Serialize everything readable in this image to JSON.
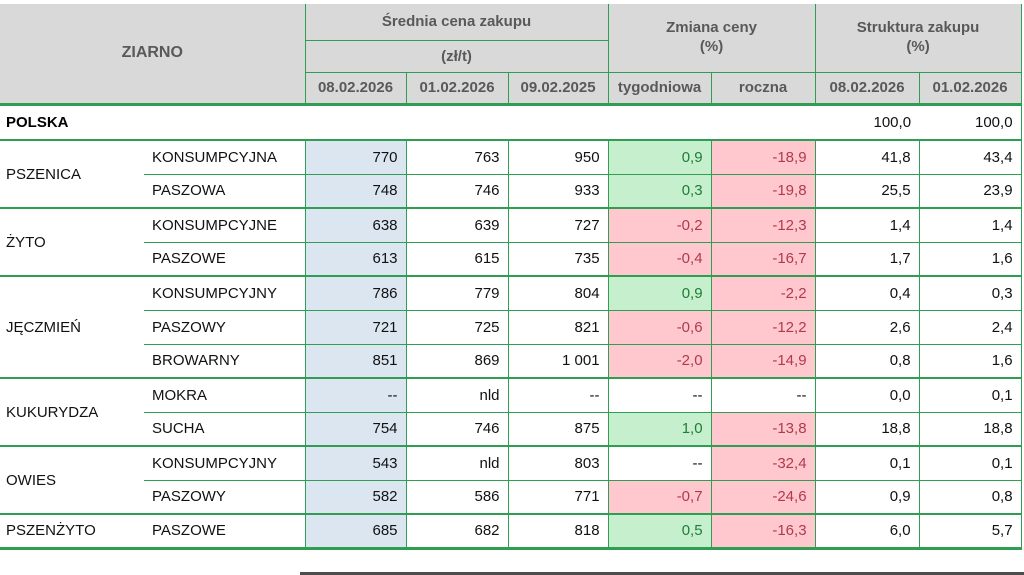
{
  "header": {
    "ziarno": "ZIARNO",
    "price_group": "Średnia cena zakupu",
    "price_unit": "(zł/t)",
    "price_dates": [
      "08.02.2026",
      "01.02.2026",
      "09.02.2025"
    ],
    "change_group": "Zmiana ceny",
    "change_unit": "(%)",
    "change_cols": [
      "tygodniowa",
      "roczna"
    ],
    "structure_group": "Struktura zakupu",
    "structure_unit": "(%)",
    "structure_dates": [
      "08.02.2026",
      "01.02.2026"
    ]
  },
  "polska": {
    "label": "POLSKA",
    "struct": [
      "100,0",
      "100,0"
    ]
  },
  "rows": [
    {
      "group": "PSZENICA",
      "span": 2,
      "type": "KONSUMPCYJNA",
      "prices": [
        "770",
        "763",
        "950"
      ],
      "weekly": {
        "v": "0,9",
        "s": "pos"
      },
      "yearly": {
        "v": "-18,9",
        "s": "neg"
      },
      "struct": [
        "41,8",
        "43,4"
      ]
    },
    {
      "type": "PASZOWA",
      "prices": [
        "748",
        "746",
        "933"
      ],
      "weekly": {
        "v": "0,3",
        "s": "pos"
      },
      "yearly": {
        "v": "-19,8",
        "s": "neg"
      },
      "struct": [
        "25,5",
        "23,9"
      ]
    },
    {
      "group": "ŻYTO",
      "span": 2,
      "type": "KONSUMPCYJNE",
      "prices": [
        "638",
        "639",
        "727"
      ],
      "weekly": {
        "v": "-0,2",
        "s": "neg"
      },
      "yearly": {
        "v": "-12,3",
        "s": "neg"
      },
      "struct": [
        "1,4",
        "1,4"
      ]
    },
    {
      "type": "PASZOWE",
      "prices": [
        "613",
        "615",
        "735"
      ],
      "weekly": {
        "v": "-0,4",
        "s": "neg"
      },
      "yearly": {
        "v": "-16,7",
        "s": "neg"
      },
      "struct": [
        "1,7",
        "1,6"
      ]
    },
    {
      "group": "JĘCZMIEŃ",
      "span": 3,
      "type": "KONSUMPCYJNY",
      "prices": [
        "786",
        "779",
        "804"
      ],
      "weekly": {
        "v": "0,9",
        "s": "pos"
      },
      "yearly": {
        "v": "-2,2",
        "s": "neg"
      },
      "struct": [
        "0,4",
        "0,3"
      ]
    },
    {
      "type": "PASZOWY",
      "prices": [
        "721",
        "725",
        "821"
      ],
      "weekly": {
        "v": "-0,6",
        "s": "neg"
      },
      "yearly": {
        "v": "-12,2",
        "s": "neg"
      },
      "struct": [
        "2,6",
        "2,4"
      ]
    },
    {
      "type": "BROWARNY",
      "prices": [
        "851",
        "869",
        "1 001"
      ],
      "weekly": {
        "v": "-2,0",
        "s": "neg"
      },
      "yearly": {
        "v": "-14,9",
        "s": "neg"
      },
      "struct": [
        "0,8",
        "1,6"
      ]
    },
    {
      "group": "KUKURYDZA",
      "span": 2,
      "type": "MOKRA",
      "prices": [
        "--",
        "nld",
        "--"
      ],
      "weekly": {
        "v": "--",
        "s": "plain"
      },
      "yearly": {
        "v": "--",
        "s": "plain"
      },
      "struct": [
        "0,0",
        "0,1"
      ]
    },
    {
      "type": "SUCHA",
      "prices": [
        "754",
        "746",
        "875"
      ],
      "weekly": {
        "v": "1,0",
        "s": "pos"
      },
      "yearly": {
        "v": "-13,8",
        "s": "neg"
      },
      "struct": [
        "18,8",
        "18,8"
      ]
    },
    {
      "group": "OWIES",
      "span": 2,
      "type": "KONSUMPCYJNY",
      "prices": [
        "543",
        "nld",
        "803"
      ],
      "weekly": {
        "v": "--",
        "s": "plain"
      },
      "yearly": {
        "v": "-32,4",
        "s": "neg"
      },
      "struct": [
        "0,1",
        "0,1"
      ]
    },
    {
      "type": "PASZOWY",
      "prices": [
        "582",
        "586",
        "771"
      ],
      "weekly": {
        "v": "-0,7",
        "s": "neg"
      },
      "yearly": {
        "v": "-24,6",
        "s": "neg"
      },
      "struct": [
        "0,9",
        "0,8"
      ]
    },
    {
      "group": "PSZENŻYTO",
      "span": 1,
      "type": "PASZOWE",
      "prices": [
        "685",
        "682",
        "818"
      ],
      "weekly": {
        "v": "0,5",
        "s": "pos"
      },
      "yearly": {
        "v": "-16,3",
        "s": "neg"
      },
      "struct": [
        "6,0",
        "5,7"
      ]
    }
  ],
  "colors": {
    "border_green": "#2f9e53",
    "header_bg": "#d9d9d9",
    "header_text": "#595959",
    "highlight_blue": "#dce6f1",
    "positive_bg": "#c6efce",
    "positive_text": "#1e7e34",
    "negative_bg": "#ffc7ce",
    "negative_text": "#b13a4b"
  }
}
